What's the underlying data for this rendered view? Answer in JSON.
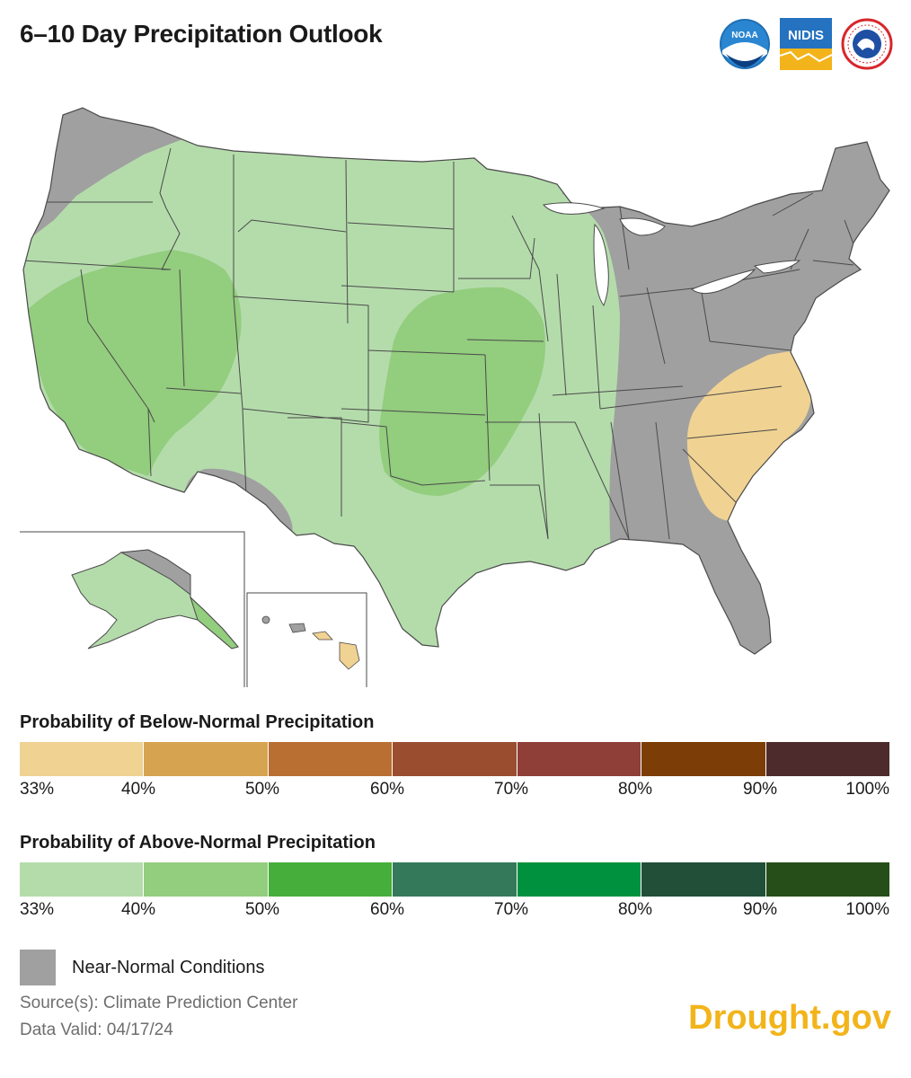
{
  "title": "6–10 Day Precipitation Outlook",
  "logos": [
    {
      "name": "noaa-logo",
      "text": "NOAA"
    },
    {
      "name": "nidis-logo",
      "text": "NIDIS"
    },
    {
      "name": "nws-logo",
      "text": "NATIONAL WEATHER SERVICE"
    }
  ],
  "colors": {
    "near_normal": "#a0a0a0",
    "above_33_40": "#b4dcab",
    "above_40_50": "#93cd7e",
    "below_33_40": "#f0d292",
    "state_border": "#4a4a4a",
    "brand": "#f2b41a"
  },
  "map": {
    "regions": [
      {
        "name": "northwest-near-normal",
        "category": "Near-Normal Conditions"
      },
      {
        "name": "southwest-near-normal",
        "category": "Near-Normal Conditions"
      },
      {
        "name": "east-near-normal",
        "category": "Near-Normal Conditions"
      },
      {
        "name": "central-above-33",
        "category": "Above 33–40%"
      },
      {
        "name": "west-above-40",
        "category": "Above 40–50%"
      },
      {
        "name": "plains-above-40",
        "category": "Above 40–50%"
      },
      {
        "name": "carolinas-below-33",
        "category": "Below 33–40%"
      },
      {
        "name": "alaska-above-33",
        "category": "Above 33–40%"
      },
      {
        "name": "hawaii-below-33",
        "category": "Below 33–40%"
      }
    ]
  },
  "legend_below": {
    "title": "Probability of Below-Normal Precipitation",
    "colors": [
      "#f0d292",
      "#d6a450",
      "#b96f32",
      "#9b4e2f",
      "#8f3f37",
      "#7c3d06",
      "#4d2b2d"
    ],
    "ticks": [
      "33%",
      "40%",
      "50%",
      "60%",
      "70%",
      "80%",
      "90%",
      "100%"
    ]
  },
  "legend_above": {
    "title": "Probability of Above-Normal Precipitation",
    "colors": [
      "#b4dcab",
      "#93cd7e",
      "#46ae3a",
      "#35795b",
      "#00913f",
      "#214f38",
      "#264e19"
    ],
    "ticks": [
      "33%",
      "40%",
      "50%",
      "60%",
      "70%",
      "80%",
      "90%",
      "100%"
    ]
  },
  "near_normal_label": "Near-Normal Conditions",
  "source": "Source(s): Climate Prediction Center",
  "data_valid": "Data Valid: 04/17/24",
  "brand": "Drought.gov"
}
